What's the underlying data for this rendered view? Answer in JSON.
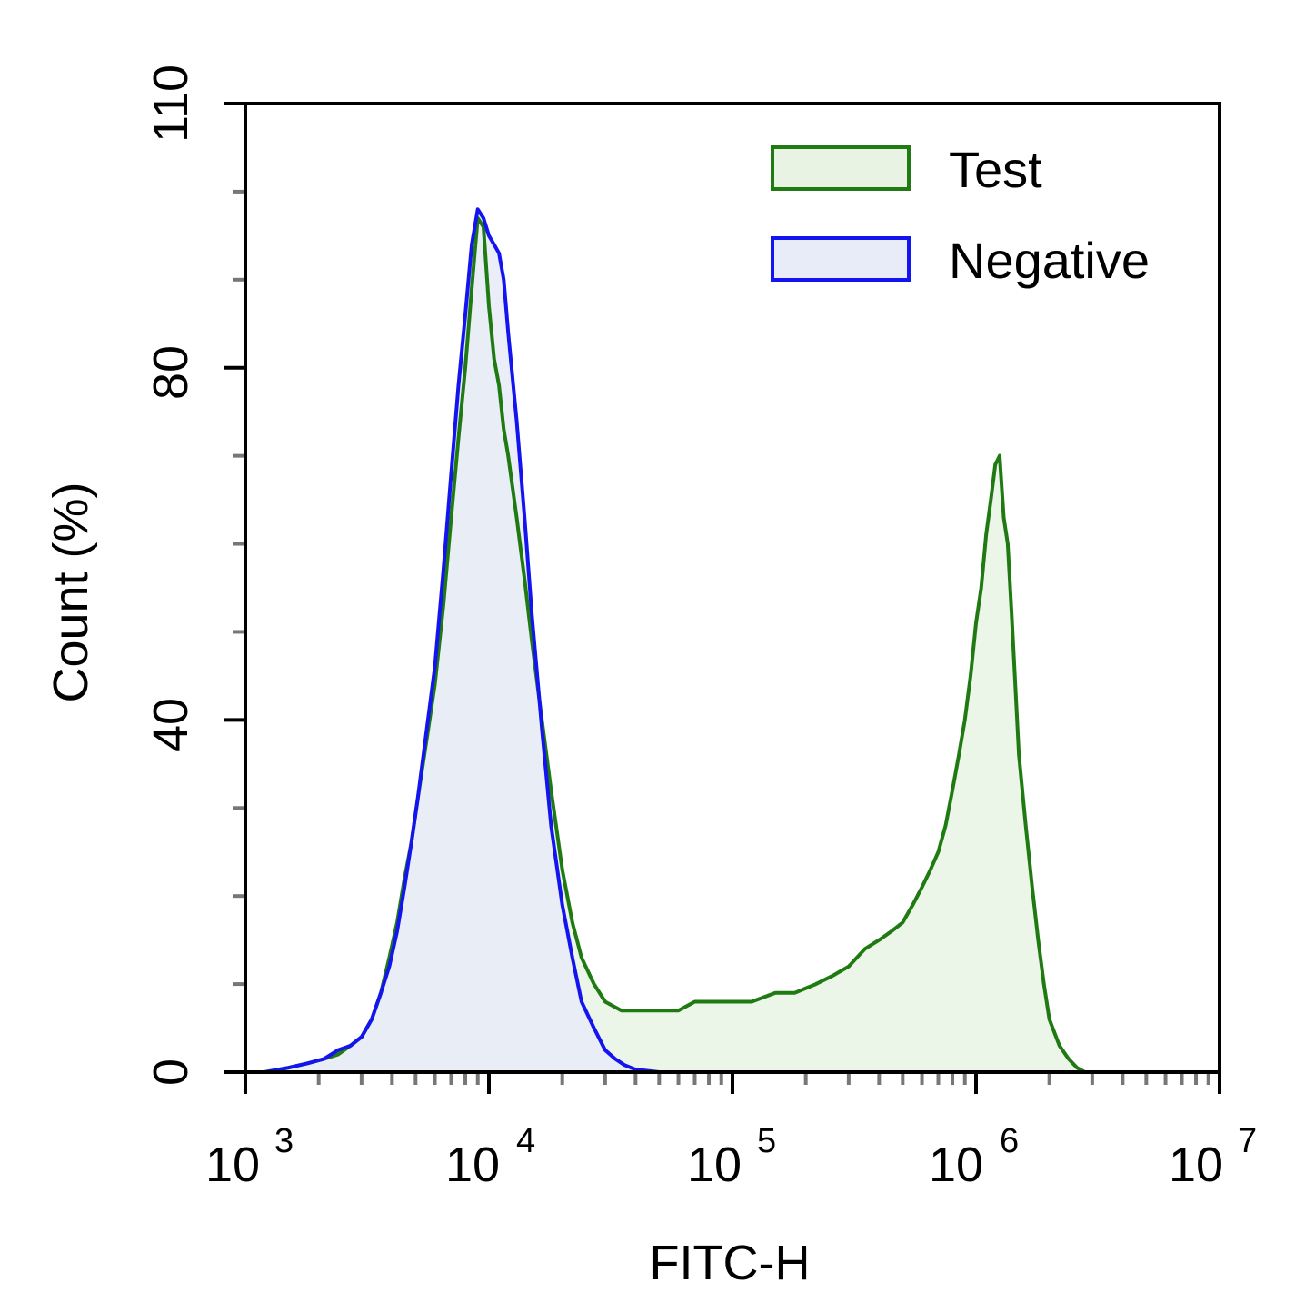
{
  "chart_data": {
    "type": "area",
    "title": "",
    "xlabel": "FITC-H",
    "ylabel": "Count  (%)",
    "xscale": "log10",
    "xlim": [
      1000,
      10000000
    ],
    "ylim": [
      0,
      110
    ],
    "y_ticks": [
      0,
      40,
      80,
      110
    ],
    "x_ticks": [
      {
        "base": "10",
        "exp": "3"
      },
      {
        "base": "10",
        "exp": "4"
      },
      {
        "base": "10",
        "exp": "5"
      },
      {
        "base": "10",
        "exp": "6"
      },
      {
        "base": "10",
        "exp": "7"
      }
    ],
    "legend_position": "top-right",
    "series": [
      {
        "name": "Test",
        "color": "#1f7a12",
        "fill": "#e8f3e4",
        "x": [
          1000,
          1200,
          1500,
          1800,
          2100,
          2400,
          2700,
          3000,
          3300,
          3600,
          3900,
          4200,
          4500,
          4800,
          5100,
          5500,
          6000,
          6500,
          7000,
          7500,
          8000,
          8500,
          9000,
          9500,
          10000,
          10500,
          11000,
          11500,
          12000,
          13000,
          14000,
          15000,
          16500,
          18000,
          20000,
          22000,
          24000,
          27000,
          30000,
          35000,
          40000,
          50000,
          60000,
          70000,
          80000,
          100000,
          120000,
          150000,
          180000,
          220000,
          260000,
          300000,
          350000,
          400000,
          450000,
          500000,
          550000,
          600000,
          650000,
          700000,
          750000,
          800000,
          850000,
          900000,
          950000,
          1000000,
          1050000,
          1100000,
          1150000,
          1200000,
          1250000,
          1300000,
          1350000,
          1400000,
          1450000,
          1500000,
          1600000,
          1700000,
          1800000,
          1900000,
          2000000,
          2200000,
          2400000,
          2600000,
          2800000,
          3000000,
          3300000,
          3700000,
          4000000,
          5000000,
          7000000,
          10000000
        ],
        "values": [
          0,
          0,
          0.5,
          1,
          1.5,
          2,
          3,
          4,
          6,
          9,
          13,
          17,
          22,
          26,
          31,
          37,
          44,
          53,
          63,
          72,
          80,
          89,
          97,
          96,
          87,
          81,
          78,
          73,
          70,
          63,
          56,
          49,
          40,
          32,
          23,
          17,
          13,
          10,
          8,
          7,
          7,
          7,
          7,
          8,
          8,
          8,
          8,
          9,
          9,
          10,
          11,
          12,
          14,
          15,
          16,
          17,
          19,
          21,
          23,
          25,
          28,
          32,
          36,
          40,
          45,
          51,
          55,
          61,
          65,
          69,
          70,
          63,
          60,
          52,
          44,
          36,
          28,
          21,
          15,
          10,
          6,
          3,
          1.5,
          0.5,
          0,
          0,
          0,
          0,
          0,
          0,
          0,
          0
        ]
      },
      {
        "name": "Negative",
        "color": "#1414f0",
        "fill": "#e8ebf8",
        "x": [
          1000,
          1200,
          1500,
          1800,
          2100,
          2400,
          2700,
          3000,
          3300,
          3600,
          3900,
          4200,
          4500,
          4800,
          5100,
          5500,
          6000,
          6500,
          7000,
          7500,
          8000,
          8500,
          9000,
          9500,
          10000,
          10500,
          11000,
          11500,
          12000,
          13000,
          14000,
          15000,
          16500,
          18000,
          20000,
          22000,
          24000,
          27000,
          30000,
          33000,
          36000,
          40000,
          50000,
          100000,
          1000000,
          10000000
        ],
        "values": [
          0,
          0,
          0.5,
          1,
          1.5,
          2.5,
          3,
          4,
          6,
          9,
          12,
          16,
          21,
          26,
          31,
          38,
          46,
          57,
          68,
          78,
          86,
          94,
          98,
          97,
          95,
          94,
          93,
          90,
          84,
          74,
          63,
          52,
          39,
          28,
          19,
          13,
          8,
          5,
          2.5,
          1.5,
          0.8,
          0.3,
          0,
          0,
          0,
          0
        ]
      }
    ]
  }
}
